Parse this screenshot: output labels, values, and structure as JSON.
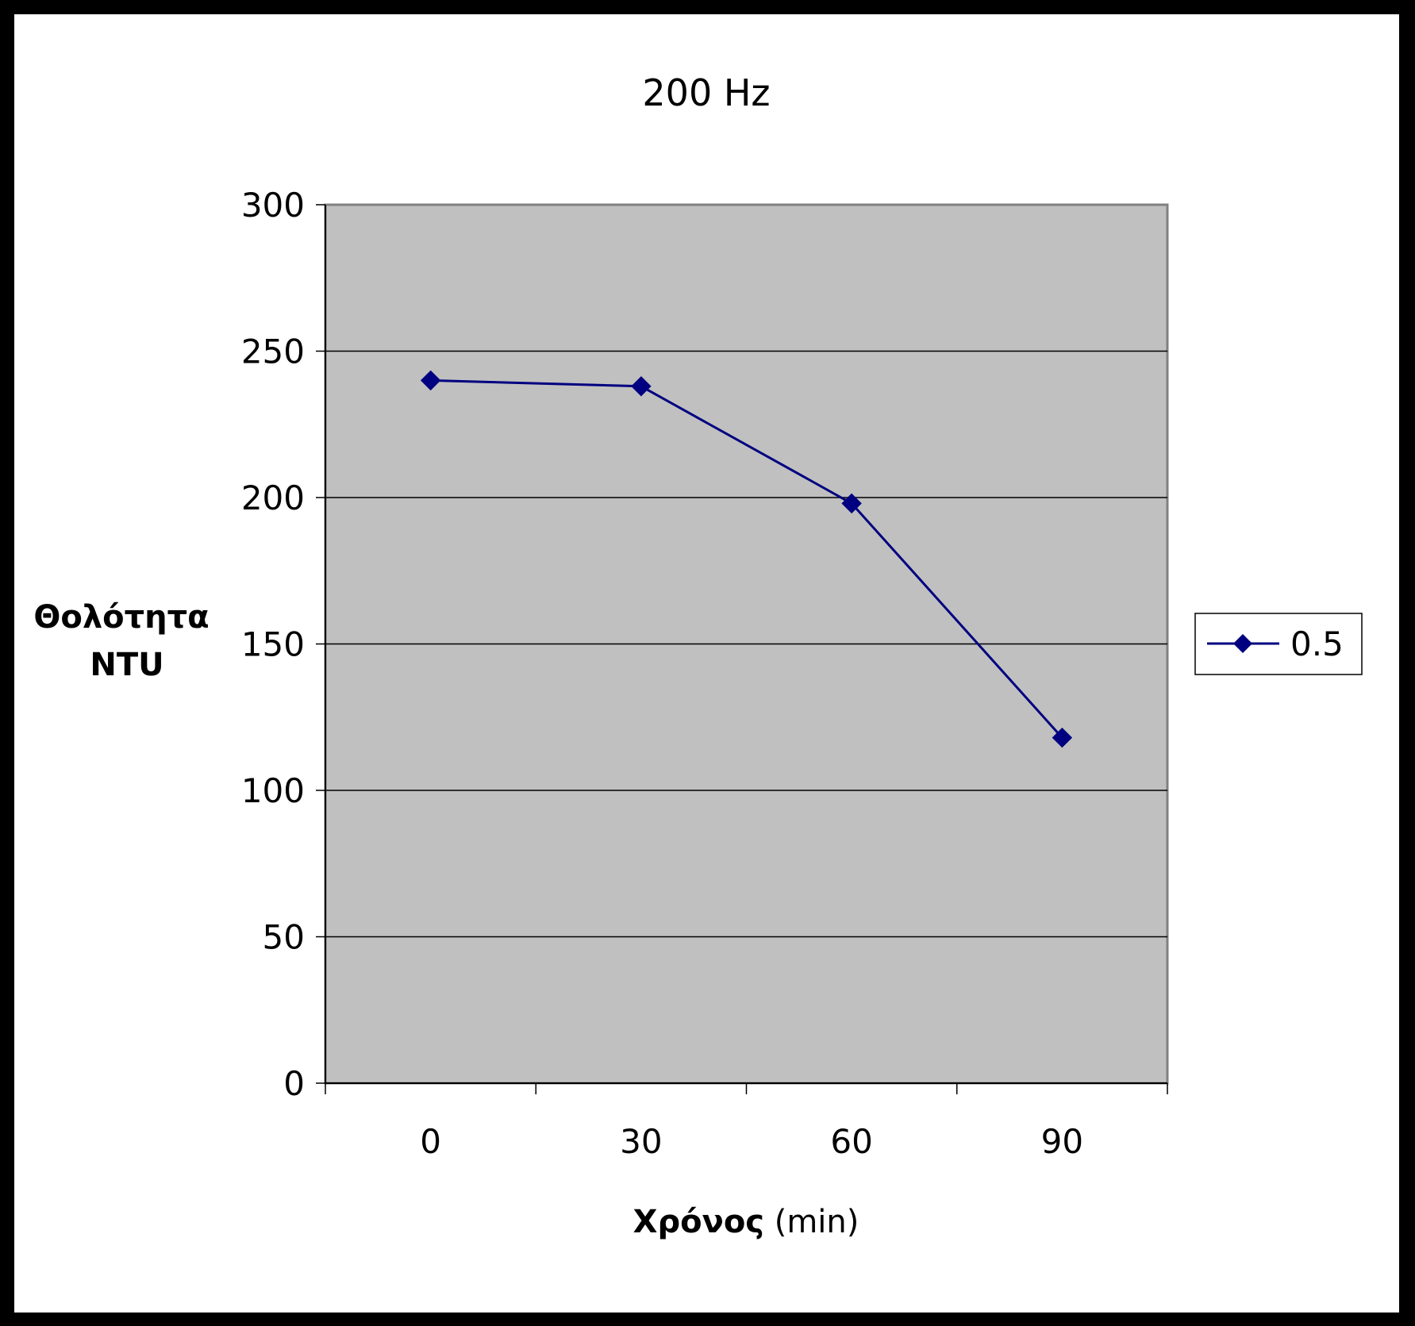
{
  "chart_data": {
    "type": "line",
    "title": "200 Hz",
    "xlabel": "Χρόνος (min)",
    "xlabel_bold_part": "Χρόνος",
    "xlabel_unit_part": " (min)",
    "ylabel_lines": [
      "Θολότητα",
      "NTU"
    ],
    "categories": [
      "0",
      "30",
      "60",
      "90"
    ],
    "ylim": [
      0,
      300
    ],
    "yticks": [
      0,
      50,
      100,
      150,
      200,
      250,
      300
    ],
    "grid": true,
    "legend_position": "right",
    "plot_background": "#c0c0c0",
    "series": [
      {
        "name": "0.5",
        "color": "#000080",
        "marker": "diamond",
        "values": [
          240,
          238,
          198,
          118
        ]
      }
    ]
  }
}
